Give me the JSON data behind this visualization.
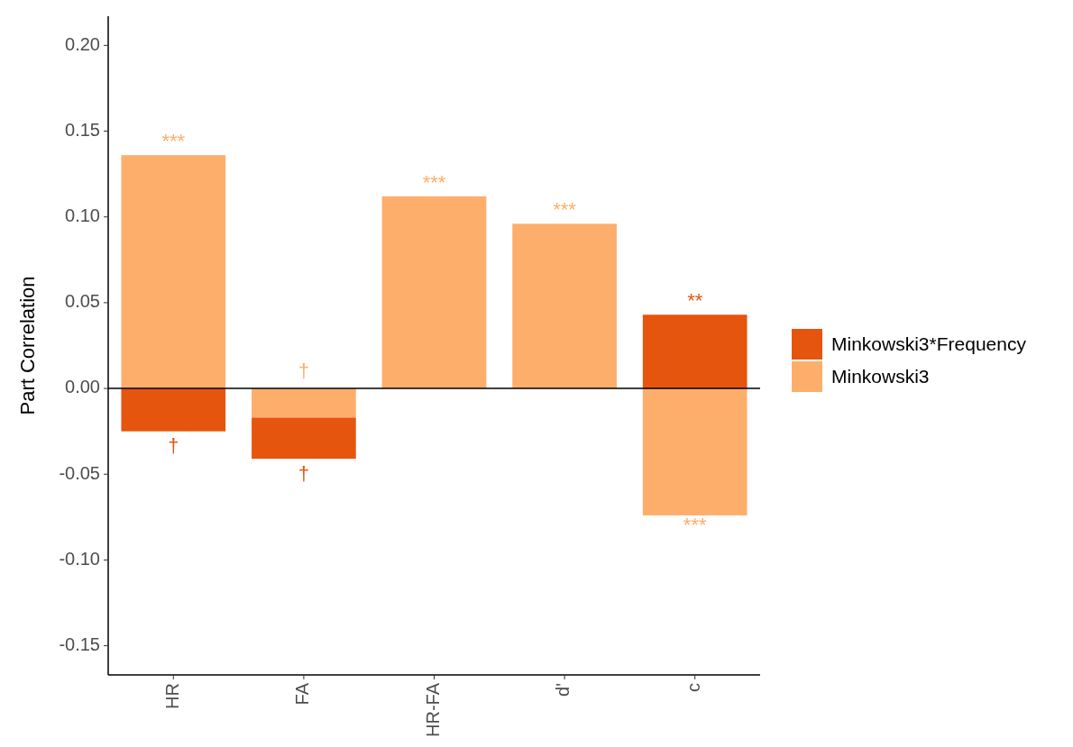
{
  "chart_data": {
    "type": "bar",
    "ylabel": "Part Correlation",
    "categories": [
      "HR",
      "FA",
      "HR-FA",
      "d'",
      "c"
    ],
    "stacked": true,
    "series": [
      {
        "name": "Minkowski3",
        "color": "#fdae6b",
        "values": [
          0.136,
          -0.017,
          0.112,
          0.096,
          -0.074
        ]
      },
      {
        "name": "Minkowski3*Frequency",
        "color": "#e6550d",
        "values": [
          -0.025,
          -0.024,
          null,
          null,
          0.043
        ]
      }
    ],
    "ylim": [
      -0.167,
      0.217
    ],
    "yticks": [
      {
        "value": -0.15,
        "label": "-0.15"
      },
      {
        "value": -0.1,
        "label": "-0.10"
      },
      {
        "value": -0.05,
        "label": "-0.05"
      },
      {
        "value": 0,
        "label": "0.00"
      },
      {
        "value": 0.05,
        "label": "0.05"
      },
      {
        "value": 0.1,
        "label": "0.10"
      },
      {
        "value": 0.15,
        "label": "0.15"
      },
      {
        "value": 0.2,
        "label": "0.20"
      }
    ],
    "ref_lines": [
      {
        "axis": "y",
        "value": 0,
        "color": "#000000"
      }
    ],
    "annotations": [
      {
        "text": "***",
        "x": "HR",
        "y": 0.136
      },
      {
        "text": "†",
        "x": "HR",
        "y": -0.025
      },
      {
        "text": "†",
        "x": "FA",
        "y": 0
      },
      {
        "text": "†",
        "x": "FA",
        "y": -0.041
      },
      {
        "text": "***",
        "x": "HR-FA",
        "y": 0.112
      },
      {
        "text": "***",
        "x": "d'",
        "y": 0.096
      },
      {
        "text": "**",
        "x": "c",
        "y": 0.043
      },
      {
        "text": "***",
        "x": "c",
        "y": -0.074
      }
    ],
    "grid": false,
    "legend": "right"
  }
}
